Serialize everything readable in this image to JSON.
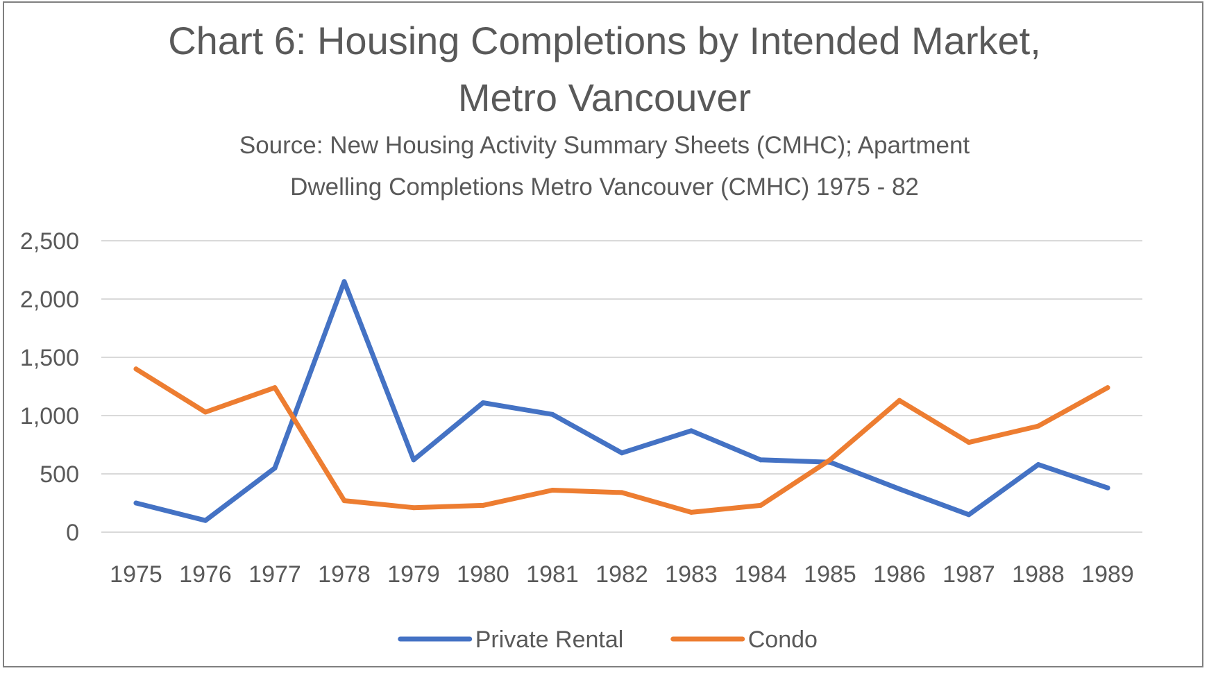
{
  "title_line1": "Chart 6: Housing Completions by Intended Market,",
  "title_line2": "Metro Vancouver",
  "subtitle_line1": "Source: New Housing Activity Summary Sheets (CMHC); Apartment",
  "subtitle_line2": "Dwelling Completions Metro Vancouver (CMHC) 1975 - 82",
  "colors": {
    "private_rental": "#4472c4",
    "condo": "#ed7d31",
    "gridline": "#d9d9d9",
    "text": "#595959"
  },
  "chart_data": {
    "type": "line",
    "title": "Chart 6: Housing Completions by Intended Market, Metro Vancouver",
    "subtitle": "Source: New Housing Activity Summary Sheets (CMHC); Apartment Dwelling Completions Metro Vancouver (CMHC) 1975 - 82",
    "xlabel": "",
    "ylabel": "",
    "categories": [
      "1975",
      "1976",
      "1977",
      "1978",
      "1979",
      "1980",
      "1981",
      "1982",
      "1983",
      "1984",
      "1985",
      "1986",
      "1987",
      "1988",
      "1989"
    ],
    "y_ticks": [
      "0",
      "500",
      "1,000",
      "1,500",
      "2,000",
      "2,500"
    ],
    "ylim": [
      0,
      2500
    ],
    "grid": true,
    "legend_position": "bottom",
    "series": [
      {
        "name": "Private Rental",
        "color": "#4472c4",
        "values": [
          250,
          100,
          550,
          2150,
          620,
          1110,
          1010,
          680,
          870,
          620,
          600,
          370,
          150,
          580,
          380
        ]
      },
      {
        "name": "Condo",
        "color": "#ed7d31",
        "values": [
          1400,
          1030,
          1240,
          270,
          210,
          230,
          360,
          340,
          170,
          230,
          620,
          1130,
          770,
          910,
          1240
        ]
      }
    ]
  }
}
